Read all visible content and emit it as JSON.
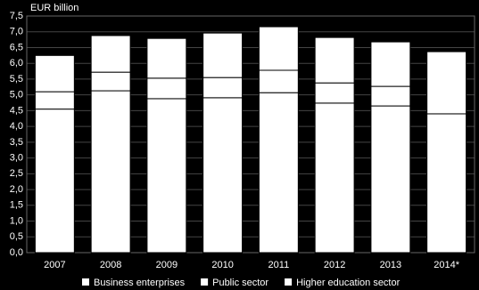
{
  "chart_data": {
    "type": "stacked-bar",
    "y_label": "EUR billion",
    "categories": [
      "2007",
      "2008",
      "2009",
      "2010",
      "2011",
      "2012",
      "2013",
      "2014*"
    ],
    "series": [
      {
        "name": "Business enterprises",
        "color": "#ffffff",
        "values": [
          4.55,
          5.13,
          4.88,
          4.91,
          5.07,
          4.74,
          4.65,
          4.4
        ]
      },
      {
        "name": "Public sector",
        "color": "#ffffff",
        "values": [
          0.55,
          0.59,
          0.65,
          0.64,
          0.71,
          0.64,
          0.62,
          null
        ]
      },
      {
        "name": "Higher education sector",
        "color": "#ffffff",
        "values": [
          1.15,
          1.16,
          1.26,
          1.41,
          1.38,
          1.44,
          1.41,
          1.97
        ]
      }
    ],
    "ylim": [
      0,
      7.5
    ],
    "yticks": [
      {
        "value": 0,
        "label": "0,0"
      },
      {
        "value": 0.5,
        "label": "0,5"
      },
      {
        "value": 1,
        "label": "1,0"
      },
      {
        "value": 1.5,
        "label": "1,5"
      },
      {
        "value": 2,
        "label": "2,0"
      },
      {
        "value": 2.5,
        "label": "2,5"
      },
      {
        "value": 3,
        "label": "3,0"
      },
      {
        "value": 3.5,
        "label": "3,5"
      },
      {
        "value": 4,
        "label": "4,0"
      },
      {
        "value": 4.5,
        "label": "4,5"
      },
      {
        "value": 5,
        "label": "5,0"
      },
      {
        "value": 5.5,
        "label": "5,5"
      },
      {
        "value": 6,
        "label": "6,0"
      },
      {
        "value": 6.5,
        "label": "6,5"
      },
      {
        "value": 7,
        "label": "7,0"
      },
      {
        "value": 7.5,
        "label": "7,5"
      }
    ],
    "grid": true
  }
}
